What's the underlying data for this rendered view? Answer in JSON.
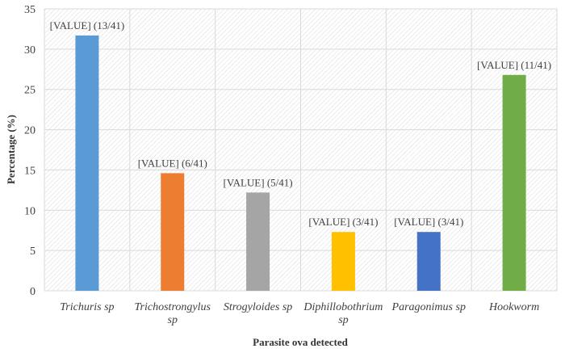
{
  "chart_data": {
    "type": "bar",
    "title": "",
    "xlabel": "Parasite ova detected",
    "ylabel": "Percentage (%)",
    "ylim": [
      0,
      35
    ],
    "yticks": [
      0,
      5,
      10,
      15,
      20,
      25,
      30,
      35
    ],
    "grid": true,
    "categories": [
      [
        "Trichuris sp"
      ],
      [
        "Trichostrongylus",
        "sp"
      ],
      [
        "Strogyloides sp"
      ],
      [
        "Diphillobothrium",
        "sp"
      ],
      [
        "Paragonimus sp"
      ],
      [
        "Hookworm"
      ]
    ],
    "values": [
      31.7,
      14.6,
      12.2,
      7.3,
      7.3,
      26.8
    ],
    "data_labels": [
      "[VALUE]  (13/41)",
      "[VALUE]  (6/41)",
      "[VALUE]  (5/41)",
      "[VALUE]  (3/41)",
      "[VALUE]  (3/41)",
      "[VALUE]  (11/41)"
    ],
    "colors": [
      "#5B9BD5",
      "#ED7D31",
      "#A5A5A5",
      "#FFC000",
      "#4472C4",
      "#70AD47"
    ]
  }
}
